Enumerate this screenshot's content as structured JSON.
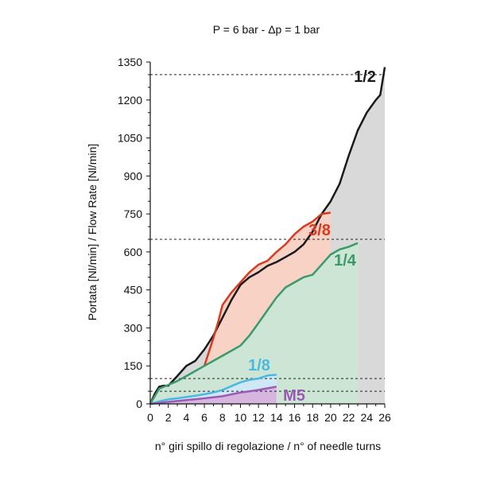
{
  "chart_data": {
    "type": "area",
    "title": "P = 6 bar - Δp = 1 bar",
    "xlabel": "n° giri spillo di regolazione / n° of needle turns",
    "ylabel": "Portata [Nl/min] / Flow Rate [Nl/min]",
    "xlim": [
      0,
      26
    ],
    "ylim": [
      0,
      1350
    ],
    "xticks": [
      0,
      2,
      4,
      6,
      8,
      10,
      12,
      14,
      16,
      18,
      20,
      22,
      24,
      26
    ],
    "yticks": [
      0,
      150,
      300,
      450,
      600,
      750,
      900,
      1050,
      1200,
      1350
    ],
    "grid": false,
    "reference_lines": [
      1300,
      650,
      100,
      50
    ],
    "series": [
      {
        "name": "1/2",
        "color": "#1a1a1a",
        "fill": "#d9d9d9",
        "points": [
          [
            0,
            0
          ],
          [
            0.5,
            40
          ],
          [
            1,
            68
          ],
          [
            1.5,
            72
          ],
          [
            2,
            72
          ],
          [
            3,
            110
          ],
          [
            4,
            150
          ],
          [
            5,
            170
          ],
          [
            6,
            215
          ],
          [
            7,
            270
          ],
          [
            8,
            340
          ],
          [
            9,
            410
          ],
          [
            10,
            470
          ],
          [
            11,
            500
          ],
          [
            12,
            520
          ],
          [
            13,
            545
          ],
          [
            14,
            560
          ],
          [
            15,
            580
          ],
          [
            16,
            600
          ],
          [
            17,
            630
          ],
          [
            18,
            680
          ],
          [
            19,
            750
          ],
          [
            20,
            800
          ],
          [
            21,
            870
          ],
          [
            22,
            980
          ],
          [
            23,
            1080
          ],
          [
            24,
            1150
          ],
          [
            25,
            1200
          ],
          [
            25.5,
            1220
          ],
          [
            26,
            1330
          ]
        ]
      },
      {
        "name": "3/8",
        "color": "#d93a1f",
        "fill": "#f8d3c5",
        "points": [
          [
            6,
            150
          ],
          [
            7,
            260
          ],
          [
            7.5,
            320
          ],
          [
            8,
            390
          ],
          [
            9,
            440
          ],
          [
            10,
            480
          ],
          [
            11,
            520
          ],
          [
            12,
            550
          ],
          [
            13,
            565
          ],
          [
            14,
            600
          ],
          [
            15,
            630
          ],
          [
            16,
            670
          ],
          [
            17,
            700
          ],
          [
            18,
            720
          ],
          [
            19,
            750
          ],
          [
            20,
            755
          ]
        ]
      },
      {
        "name": "1/4",
        "color": "#3a9a6a",
        "fill": "#cde5d4",
        "points": [
          [
            0,
            0
          ],
          [
            1,
            60
          ],
          [
            2,
            75
          ],
          [
            3,
            90
          ],
          [
            4,
            110
          ],
          [
            5,
            130
          ],
          [
            6,
            150
          ],
          [
            7,
            170
          ],
          [
            8,
            190
          ],
          [
            9,
            210
          ],
          [
            10,
            230
          ],
          [
            11,
            270
          ],
          [
            12,
            320
          ],
          [
            13,
            370
          ],
          [
            14,
            420
          ],
          [
            15,
            460
          ],
          [
            16,
            480
          ],
          [
            17,
            500
          ],
          [
            18,
            510
          ],
          [
            19,
            550
          ],
          [
            20,
            590
          ],
          [
            21,
            610
          ],
          [
            22,
            620
          ],
          [
            23,
            635
          ]
        ]
      },
      {
        "name": "1/8",
        "color": "#4ab8e0",
        "fill": "#cfe8f5",
        "points": [
          [
            0,
            0
          ],
          [
            1,
            10
          ],
          [
            2,
            18
          ],
          [
            3,
            22
          ],
          [
            4,
            27
          ],
          [
            5,
            32
          ],
          [
            6,
            38
          ],
          [
            7,
            45
          ],
          [
            8,
            55
          ],
          [
            9,
            70
          ],
          [
            10,
            85
          ],
          [
            11,
            95
          ],
          [
            12,
            100
          ],
          [
            13,
            112
          ],
          [
            14,
            115
          ]
        ]
      },
      {
        "name": "M5",
        "color": "#9b59b6",
        "fill": "#d6b6df",
        "points": [
          [
            0,
            0
          ],
          [
            2,
            8
          ],
          [
            4,
            15
          ],
          [
            6,
            22
          ],
          [
            8,
            30
          ],
          [
            10,
            45
          ],
          [
            12,
            55
          ],
          [
            14,
            68
          ]
        ]
      }
    ]
  }
}
